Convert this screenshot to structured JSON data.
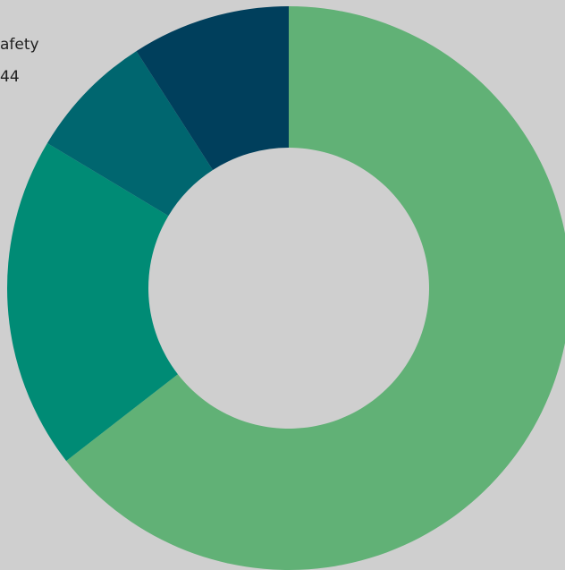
{
  "chart_data": {
    "type": "pie",
    "style": "donut",
    "background": "#cfcfcf",
    "slices": [
      {
        "value": 64.5,
        "color": "#61b176"
      },
      {
        "value": 19.1,
        "color": "#008b75"
      },
      {
        "value": 7.3,
        "color": "#00666f"
      },
      {
        "value": 9.1,
        "color": "#003f5c"
      }
    ],
    "annotations": [
      {
        "line1": "afety",
        "line2": "44"
      }
    ]
  }
}
